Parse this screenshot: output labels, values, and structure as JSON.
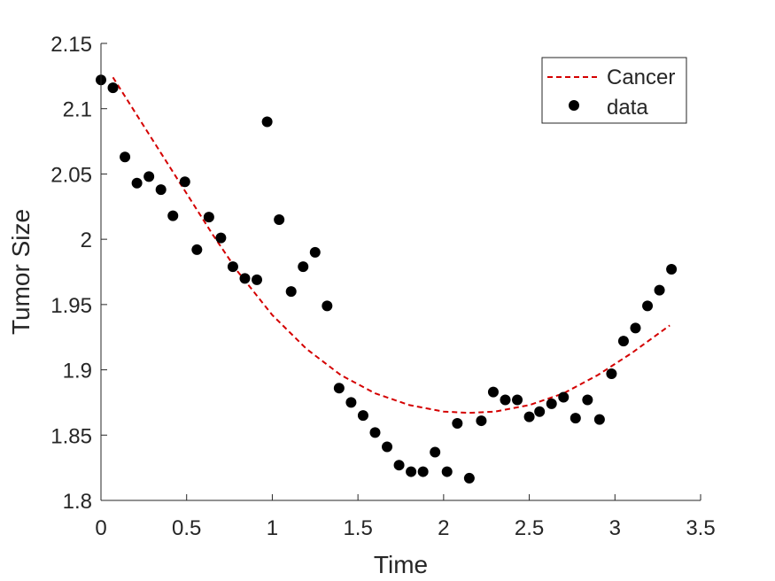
{
  "chart_data": {
    "type": "scatter",
    "title": "",
    "xlabel": "Time",
    "ylabel": "Tumor Size",
    "xlim": [
      0,
      3.5
    ],
    "ylim": [
      1.8,
      2.15
    ],
    "grid": false,
    "legend_position": "top-right",
    "x_ticks": [
      {
        "value": 0,
        "label": "0"
      },
      {
        "value": 0.5,
        "label": "0.5"
      },
      {
        "value": 1,
        "label": "1"
      },
      {
        "value": 1.5,
        "label": "1.5"
      },
      {
        "value": 2,
        "label": "2"
      },
      {
        "value": 2.5,
        "label": "2.5"
      },
      {
        "value": 3,
        "label": "3"
      },
      {
        "value": 3.5,
        "label": "3.5"
      }
    ],
    "y_ticks": [
      {
        "value": 1.8,
        "label": "1.8"
      },
      {
        "value": 1.85,
        "label": "1.85"
      },
      {
        "value": 1.9,
        "label": "1.9"
      },
      {
        "value": 1.95,
        "label": "1.95"
      },
      {
        "value": 2,
        "label": "2"
      },
      {
        "value": 2.05,
        "label": "2.05"
      },
      {
        "value": 2.1,
        "label": "2.1"
      },
      {
        "value": 2.15,
        "label": "2.15"
      }
    ],
    "series": [
      {
        "name": "Cancer",
        "kind": "line",
        "style": "dashed",
        "color": "#d40000",
        "x": [
          0.07,
          0.2,
          0.35,
          0.5,
          0.65,
          0.8,
          1.0,
          1.2,
          1.4,
          1.6,
          1.8,
          2.0,
          2.15,
          2.3,
          2.5,
          2.7,
          2.9,
          3.1,
          3.32
        ],
        "y": [
          2.124,
          2.097,
          2.066,
          2.035,
          2.004,
          1.975,
          1.942,
          1.916,
          1.896,
          1.882,
          1.873,
          1.868,
          1.867,
          1.868,
          1.873,
          1.882,
          1.896,
          1.913,
          1.934
        ]
      },
      {
        "name": "data",
        "kind": "scatter",
        "color": "#000000",
        "x": [
          0.0,
          0.07,
          0.14,
          0.21,
          0.28,
          0.35,
          0.42,
          0.49,
          0.56,
          0.63,
          0.7,
          0.77,
          0.84,
          0.91,
          0.97,
          1.04,
          1.11,
          1.18,
          1.25,
          1.32,
          1.39,
          1.46,
          1.53,
          1.6,
          1.67,
          1.74,
          1.81,
          1.88,
          1.95,
          2.02,
          2.08,
          2.15,
          2.22,
          2.29,
          2.36,
          2.43,
          2.5,
          2.56,
          2.63,
          2.7,
          2.77,
          2.84,
          2.91,
          2.98,
          3.05,
          3.12,
          3.19,
          3.26,
          3.33
        ],
        "y": [
          2.122,
          2.116,
          2.063,
          2.043,
          2.048,
          2.038,
          2.018,
          2.044,
          1.992,
          2.017,
          2.001,
          1.979,
          1.97,
          1.969,
          2.09,
          2.015,
          1.96,
          1.979,
          1.99,
          1.949,
          1.886,
          1.875,
          1.865,
          1.852,
          1.841,
          1.827,
          1.822,
          1.822,
          1.837,
          1.822,
          1.859,
          1.817,
          1.861,
          1.883,
          1.877,
          1.877,
          1.864,
          1.868,
          1.874,
          1.879,
          1.863,
          1.877,
          1.862,
          1.897,
          1.922,
          1.932,
          1.949,
          1.961,
          1.977
        ]
      }
    ]
  }
}
